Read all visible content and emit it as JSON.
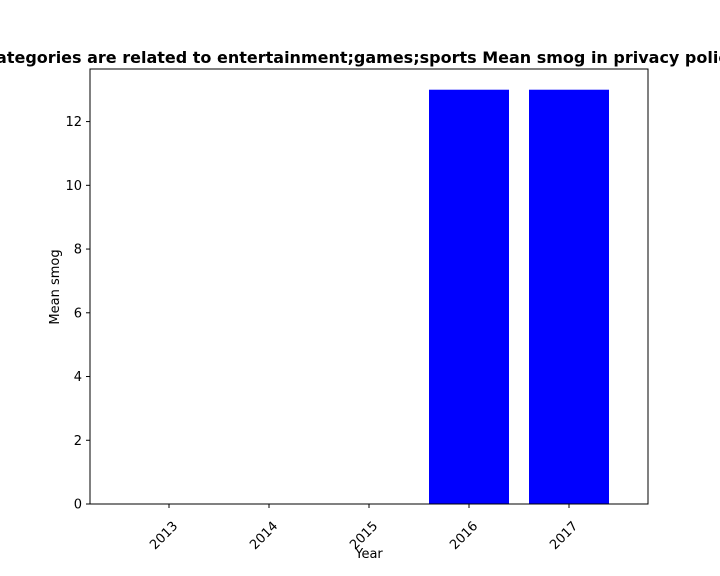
{
  "chart_data": {
    "type": "bar",
    "title": "Categories are related to entertainment;games;sports Mean smog in privacy policies",
    "xlabel": "Year",
    "ylabel": "Mean smog",
    "categories": [
      "2013",
      "2014",
      "2015",
      "2016",
      "2017"
    ],
    "values": [
      0,
      0,
      0,
      13,
      13
    ],
    "ylim": [
      0,
      13.65
    ],
    "yticks": [
      0,
      2,
      4,
      6,
      8,
      10,
      12
    ],
    "bar_color": "#0000ff",
    "grid": false
  }
}
